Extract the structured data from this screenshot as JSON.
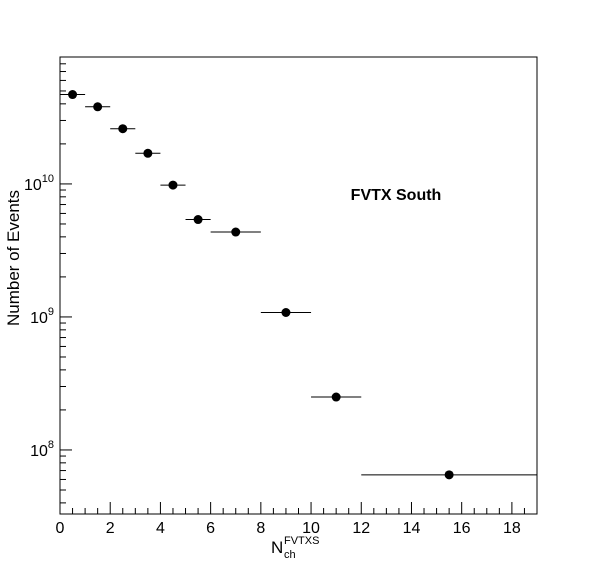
{
  "chart_data": {
    "type": "scatter",
    "title": "",
    "annotation": "FVTX South",
    "xlabel": {
      "main": "N",
      "sub": "ch",
      "sup": "FVTXS"
    },
    "ylabel": "Number of Events",
    "xlim": [
      0,
      19
    ],
    "ylim": [
      33000000.0,
      90000000000.0
    ],
    "yscale": "log",
    "grid": false,
    "legend": "none",
    "x_tick_labels": [
      "0",
      "2",
      "4",
      "6",
      "8",
      "10",
      "12",
      "14",
      "16",
      "18"
    ],
    "y_tick_labels": [
      {
        "value": 100000000.0,
        "base": "10",
        "exp": "8"
      },
      {
        "value": 1000000000.0,
        "base": "10",
        "exp": "9"
      },
      {
        "value": 10000000000.0,
        "base": "10",
        "exp": "10"
      }
    ],
    "series": [
      {
        "marker_color": "#000000",
        "points": [
          {
            "x": 0.5,
            "xlo": 0,
            "xhi": 1,
            "y": 47000000000.0
          },
          {
            "x": 1.5,
            "xlo": 1,
            "xhi": 2,
            "y": 38000000000.0
          },
          {
            "x": 2.5,
            "xlo": 2,
            "xhi": 3,
            "y": 26000000000.0
          },
          {
            "x": 3.5,
            "xlo": 3,
            "xhi": 4,
            "y": 17000000000.0
          },
          {
            "x": 4.5,
            "xlo": 4,
            "xhi": 5,
            "y": 9800000000.0
          },
          {
            "x": 5.5,
            "xlo": 5,
            "xhi": 6,
            "y": 5400000000.0
          },
          {
            "x": 7.0,
            "xlo": 6,
            "xhi": 8,
            "y": 4350000000.0
          },
          {
            "x": 9.0,
            "xlo": 8,
            "xhi": 10,
            "y": 1080000000.0
          },
          {
            "x": 11.0,
            "xlo": 10,
            "xhi": 12,
            "y": 250000000.0
          },
          {
            "x": 15.5,
            "xlo": 12,
            "xhi": 19,
            "y": 65000000.0
          }
        ]
      }
    ]
  }
}
